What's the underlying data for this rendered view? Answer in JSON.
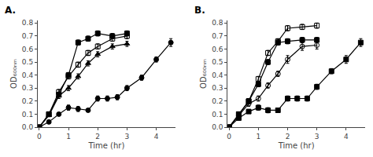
{
  "chart_data": [
    {
      "type": "line",
      "title": "A.",
      "xlabel": "Time (hr)",
      "ylabel": "OD₆₀₀ₙₘ",
      "xlim": [
        -0.05,
        4.65
      ],
      "ylim": [
        0,
        0.82
      ],
      "xticks": [
        0,
        1,
        2,
        3,
        4
      ],
      "yticks": [
        {
          "value": 0,
          "label": "0.0"
        },
        0.1,
        0.2,
        0.3,
        0.4,
        0.5,
        0.6,
        0.7,
        0.8
      ],
      "grid": false,
      "series": [
        {
          "color": "black",
          "marker": "square",
          "line_style": "solid",
          "x": [
            0,
            0.33,
            0.67,
            1.0,
            1.33,
            1.67,
            2.0,
            2.5,
            3.0
          ],
          "values": [
            0,
            0.1,
            0.25,
            0.4,
            0.65,
            0.68,
            0.72,
            0.7,
            0.72
          ],
          "yerr": [
            0,
            0.01,
            0.02,
            0.02,
            0.02,
            0.02,
            0.02,
            0.02,
            0.02
          ]
        },
        {
          "color": "black",
          "marker": "square-open",
          "line_style": "solid",
          "x": [
            0,
            0.33,
            0.67,
            1.0,
            1.33,
            1.67,
            2.0,
            2.5,
            3.0
          ],
          "values": [
            0,
            0.1,
            0.27,
            0.39,
            0.48,
            0.57,
            0.62,
            0.68,
            0.7
          ],
          "yerr": [
            0,
            0.01,
            0.02,
            0.02,
            0.02,
            0.02,
            0.02,
            0.02,
            0.02
          ]
        },
        {
          "color": "black",
          "marker": "triangle-up",
          "line_style": "solid",
          "x": [
            0,
            0.33,
            0.67,
            1.0,
            1.33,
            1.67,
            2.0,
            2.5,
            3.0
          ],
          "values": [
            0,
            0.09,
            0.24,
            0.3,
            0.39,
            0.49,
            0.56,
            0.62,
            0.64
          ],
          "yerr": [
            0,
            0.01,
            0.02,
            0.02,
            0.02,
            0.02,
            0.02,
            0.02,
            0.02
          ]
        },
        {
          "color": "black",
          "marker": "circle",
          "line_style": "solid",
          "x": [
            0,
            0.33,
            0.67,
            1.0,
            1.33,
            1.67,
            2.0,
            2.33,
            2.67,
            3.0,
            3.5,
            4.0,
            4.5
          ],
          "values": [
            0,
            0.04,
            0.1,
            0.15,
            0.14,
            0.13,
            0.22,
            0.22,
            0.23,
            0.3,
            0.38,
            0.52,
            0.65
          ],
          "yerr": [
            0,
            0.01,
            0.01,
            0.02,
            0.02,
            0.01,
            0.02,
            0.02,
            0.02,
            0.02,
            0.02,
            0.02,
            0.03
          ]
        }
      ]
    },
    {
      "type": "line",
      "title": "B.",
      "xlabel": "Time (hr)",
      "ylabel": "OD₆₀₀ₙₘ",
      "xlim": [
        -0.05,
        4.65
      ],
      "ylim": [
        0,
        0.82
      ],
      "xticks": [
        0,
        1,
        2,
        3,
        4
      ],
      "yticks": [
        {
          "value": 0,
          "label": "0.0"
        },
        0.1,
        0.2,
        0.3,
        0.4,
        0.5,
        0.6,
        0.7,
        0.8
      ],
      "grid": false,
      "series": [
        {
          "color": "black",
          "marker": "square-open",
          "line_style": "solid",
          "x": [
            0,
            0.33,
            0.67,
            1.0,
            1.33,
            1.67,
            2.0,
            2.5,
            3.0
          ],
          "values": [
            0,
            0.1,
            0.2,
            0.37,
            0.57,
            0.66,
            0.76,
            0.77,
            0.78
          ],
          "yerr": [
            0,
            0.01,
            0.02,
            0.02,
            0.02,
            0.02,
            0.02,
            0.02,
            0.02
          ]
        },
        {
          "color": "black",
          "marker": "square",
          "line_style": "solid",
          "x": [
            0,
            0.33,
            0.67,
            1.0,
            1.33,
            1.67,
            2.0,
            2.5,
            3.0
          ],
          "values": [
            0,
            0.1,
            0.2,
            0.33,
            0.5,
            0.65,
            0.66,
            0.67,
            0.67
          ],
          "yerr": [
            0,
            0.01,
            0.02,
            0.02,
            0.02,
            0.02,
            0.02,
            0.02,
            0.02
          ]
        },
        {
          "color": "black",
          "marker": "circle-open",
          "line_style": "solid",
          "x": [
            0,
            0.33,
            0.67,
            1.0,
            1.33,
            1.67,
            2.0,
            2.5,
            3.0
          ],
          "values": [
            0,
            0.09,
            0.18,
            0.22,
            0.32,
            0.41,
            0.52,
            0.62,
            0.63
          ],
          "yerr": [
            0,
            0.01,
            0.02,
            0.02,
            0.02,
            0.02,
            0.03,
            0.03,
            0.03
          ]
        },
        {
          "color": "black",
          "marker": "square",
          "line_style": "solid",
          "x": [
            0,
            0.33,
            0.67,
            1.0,
            1.33,
            1.67,
            2.0,
            2.33,
            2.67,
            3.0,
            3.5,
            4.0,
            4.5
          ],
          "values": [
            0,
            0.07,
            0.12,
            0.15,
            0.13,
            0.13,
            0.22,
            0.22,
            0.22,
            0.31,
            0.43,
            0.52,
            0.65
          ],
          "yerr": [
            0,
            0.01,
            0.01,
            0.02,
            0.02,
            0.01,
            0.02,
            0.02,
            0.02,
            0.02,
            0.02,
            0.03,
            0.03
          ]
        }
      ]
    }
  ]
}
